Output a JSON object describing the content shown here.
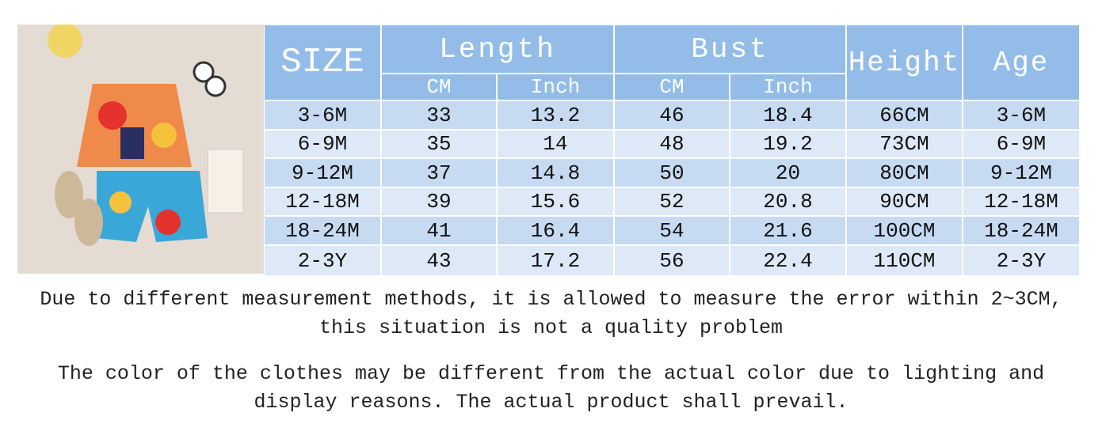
{
  "table": {
    "header": {
      "size": "SIZE",
      "length": "Length",
      "bust": "Bust",
      "height": "Height",
      "age": "Age",
      "subheaders": [
        "CM",
        "Inch",
        "CM",
        "Inch"
      ]
    },
    "rows": [
      [
        "3-6M",
        33,
        13.2,
        46,
        18.4,
        "66CM",
        "3-6M"
      ],
      [
        "6-9M",
        35,
        14,
        48,
        19.2,
        "73CM",
        "6-9M"
      ],
      [
        "9-12M",
        37,
        14.8,
        50,
        20,
        "80CM",
        "9-12M"
      ],
      [
        "12-18M",
        39,
        15.6,
        52,
        20.8,
        "90CM",
        "12-18M"
      ],
      [
        "18-24M",
        41,
        16.4,
        54,
        21.6,
        "100CM",
        "18-24M"
      ],
      [
        "2-3Y",
        43,
        17.2,
        56,
        22.4,
        "110CM",
        "2-3Y"
      ]
    ]
  },
  "notes": [
    [
      "Due to different measurement methods, it is allowed to measure the error within 2~3CM,",
      "this situation is not a quality problem"
    ],
    [
      "The color of the clothes may be different from the actual color due to lighting and",
      "display reasons. The actual product shall prevail."
    ]
  ]
}
